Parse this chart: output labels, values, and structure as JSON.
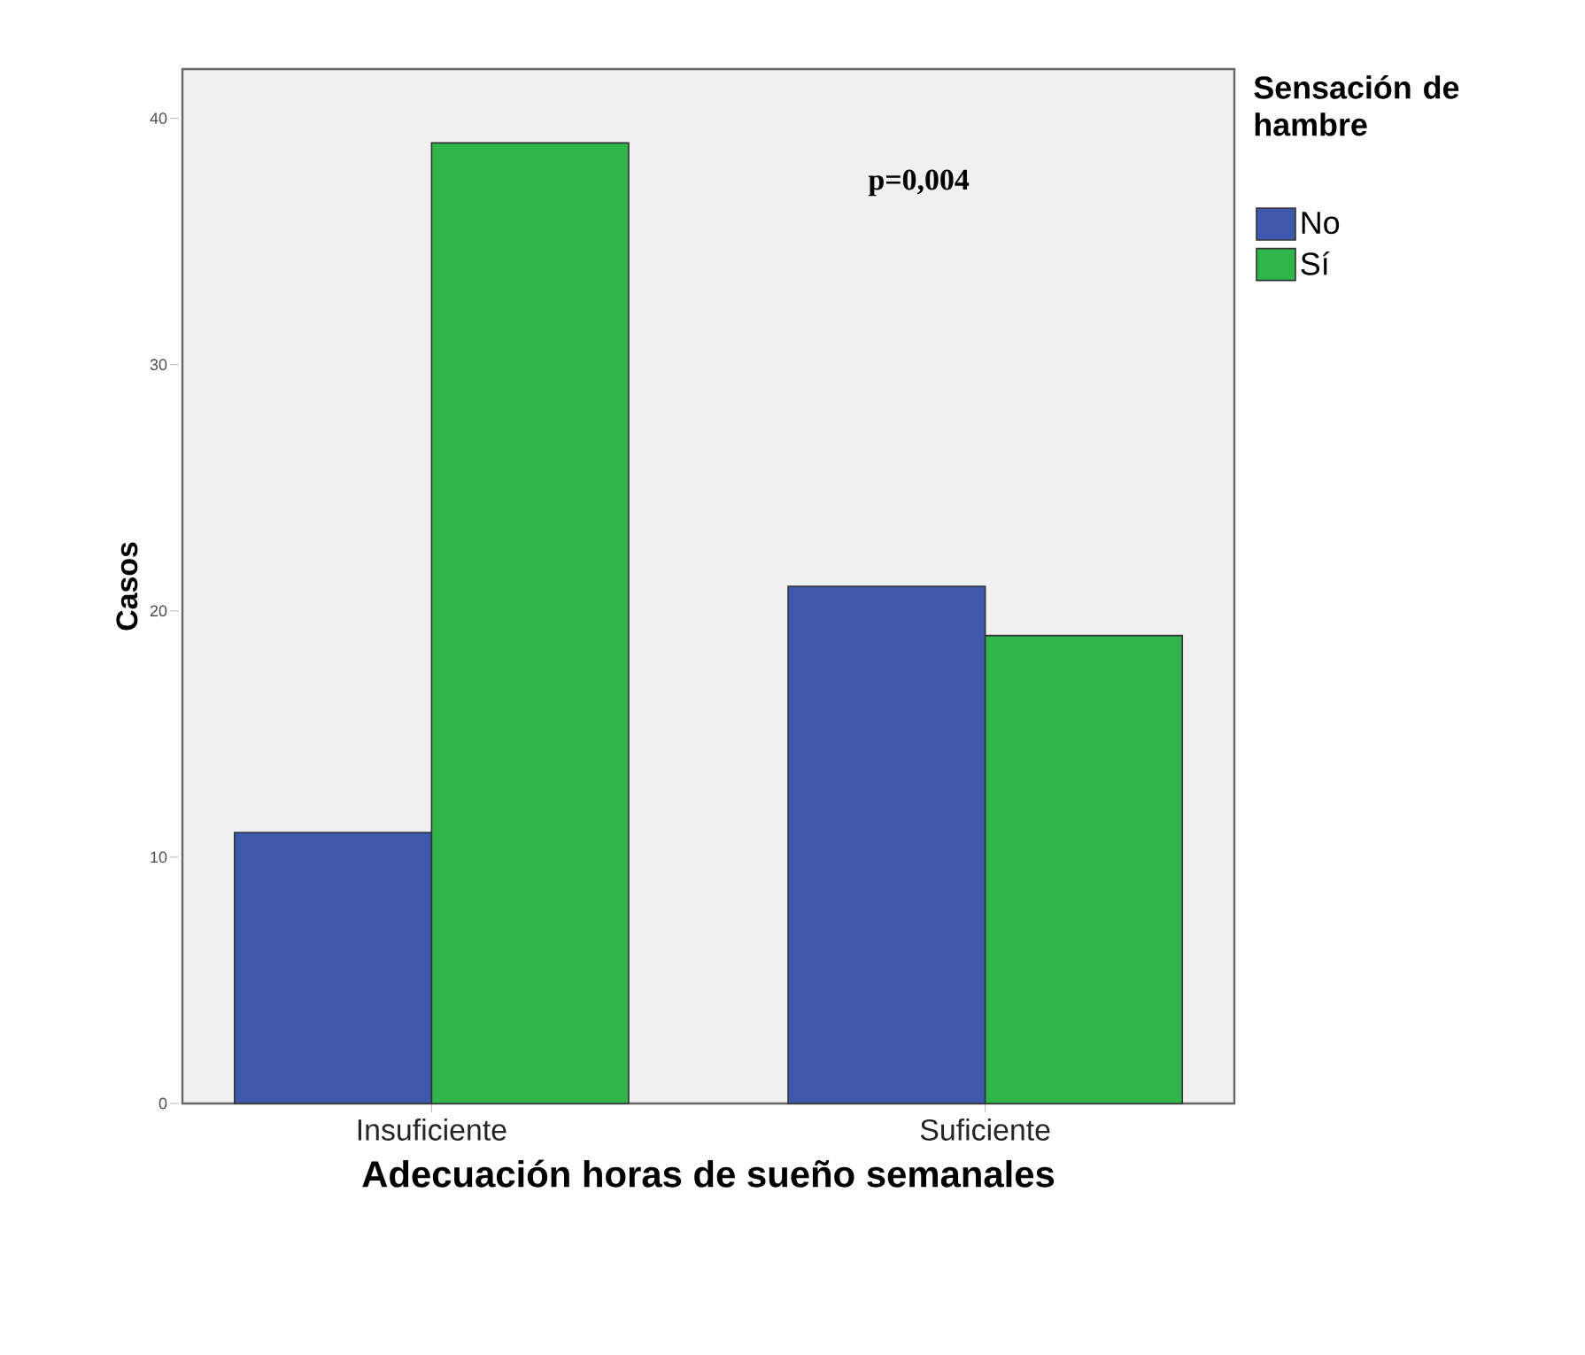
{
  "chart_data": {
    "type": "bar",
    "categories": [
      "Insuficiente",
      "Suficiente"
    ],
    "series": [
      {
        "name": "No",
        "color": "#3e58ac",
        "values": [
          11,
          21
        ]
      },
      {
        "name": "Sí",
        "color": "#2fb54a",
        "values": [
          39,
          19
        ]
      }
    ],
    "xlabel": "Adecuación horas de sueño semanales",
    "ylabel": "Casos",
    "legend_title": "Sensación de hambre",
    "annotations": [
      "p=0,004"
    ],
    "ylim": [
      0,
      42
    ],
    "yticks": [
      0,
      10,
      20,
      30,
      40
    ],
    "grid": false,
    "legend": "top right"
  }
}
